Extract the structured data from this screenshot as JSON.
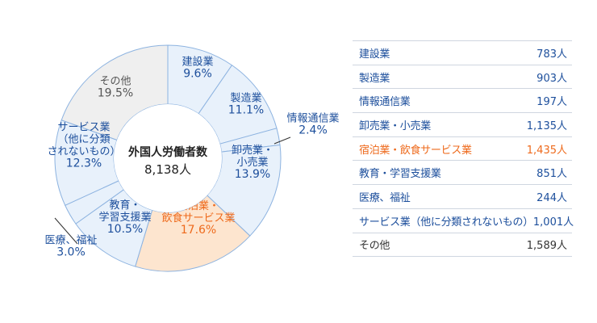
{
  "chart_data": {
    "type": "pie",
    "center": {
      "title": "外国人労働者数",
      "total": "8,138人"
    },
    "slices": [
      {
        "label_lines": [
          "建設業"
        ],
        "pct_text": "9.6%",
        "value": 9.6,
        "count": "783人",
        "table_name": "建設業"
      },
      {
        "label_lines": [
          "製造業"
        ],
        "pct_text": "11.1%",
        "value": 11.1,
        "count": "903人",
        "table_name": "製造業"
      },
      {
        "label_lines": [
          "情報通信業"
        ],
        "pct_text": "2.4%",
        "value": 2.4,
        "count": "197人",
        "table_name": "情報通信業"
      },
      {
        "label_lines": [
          "卸売業・",
          "小売業"
        ],
        "pct_text": "13.9%",
        "value": 13.9,
        "count": "1,135人",
        "table_name": "卸売業・小売業"
      },
      {
        "label_lines": [
          "宿泊業・",
          "飲食サービス業"
        ],
        "pct_text": "17.6%",
        "value": 17.6,
        "count": "1,435人",
        "table_name": "宿泊業・飲食サービス業"
      },
      {
        "label_lines": [
          "教育・",
          "学習支援業"
        ],
        "pct_text": "10.5%",
        "value": 10.5,
        "count": "851人",
        "table_name": "教育・学習支援業"
      },
      {
        "label_lines": [
          "医療、福祉"
        ],
        "pct_text": "3.0%",
        "value": 3.0,
        "count": "244人",
        "table_name": "医療、福祉"
      },
      {
        "label_lines": [
          "サービス業",
          "（他に分類",
          "されないもの）"
        ],
        "pct_text": "12.3%",
        "value": 12.3,
        "count": "1,001人",
        "table_name": "サービス業（他に分類されないもの）"
      },
      {
        "label_lines": [
          "その他"
        ],
        "pct_text": "19.5%",
        "value": 19.5,
        "count": "1,589人",
        "table_name": "その他"
      }
    ],
    "colors": {
      "default_fill": "#e8f1fb",
      "highlight_fill": "#fde5cf",
      "other_fill": "#efefef",
      "stroke": "#8db3e0",
      "label_blue": "#1d4f9c",
      "label_orange": "#ee6a1c",
      "label_gray": "#555555"
    }
  }
}
